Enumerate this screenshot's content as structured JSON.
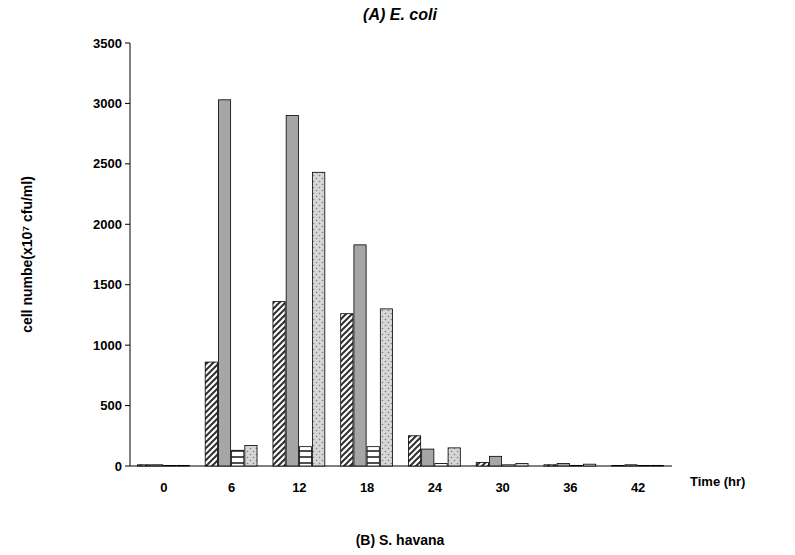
{
  "chart_data": {
    "type": "bar",
    "title": "(A) E. coli",
    "x_label": "Time (hr)",
    "y_label": "cell numbe(x10⁷ cfu/ml)",
    "annotations": [
      "(B) S. havana"
    ],
    "categories": [
      "0",
      "6",
      "12",
      "18",
      "24",
      "30",
      "36",
      "42"
    ],
    "series": [
      {
        "color": "#303030",
        "values": [
          10,
          860,
          1360,
          1260,
          250,
          30,
          10,
          5
        ]
      },
      {
        "color": "#a6a6a6",
        "values": [
          10,
          3030,
          2900,
          1830,
          140,
          80,
          20,
          10
        ]
      },
      {
        "color": "#505050",
        "values": [
          5,
          130,
          160,
          160,
          20,
          10,
          5,
          5
        ]
      },
      {
        "color": "#d6d6d6",
        "values": [
          5,
          170,
          2430,
          1300,
          150,
          20,
          15,
          5
        ]
      }
    ],
    "ylim": [
      0,
      3500
    ],
    "yticks": [
      0,
      500,
      1000,
      1500,
      2000,
      2500,
      3000,
      3500
    ],
    "grid": false
  }
}
